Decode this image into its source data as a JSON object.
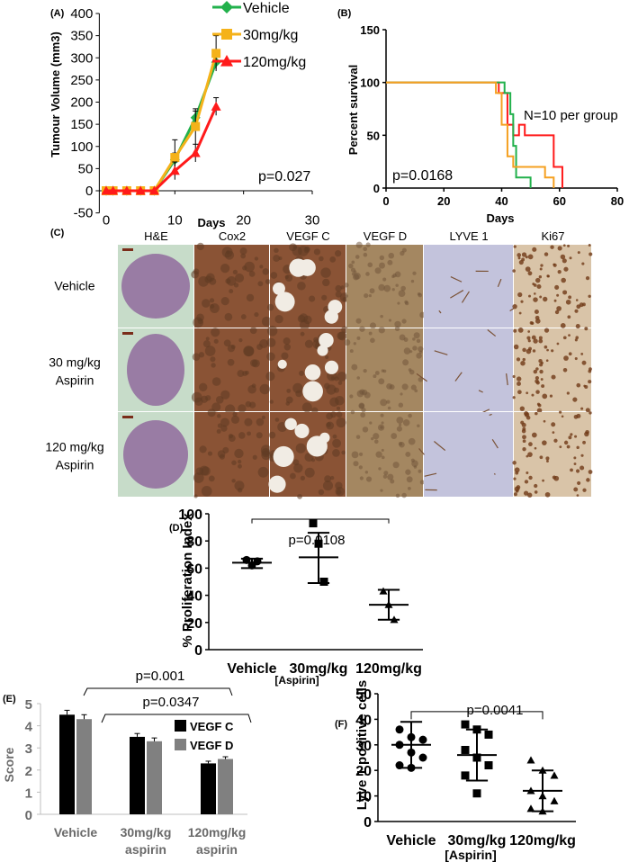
{
  "chart_data": [
    {
      "panel": "(A)",
      "type": "line",
      "xlabel": "Days",
      "ylabel": "Tumour Volume (mm3)",
      "xlim": [
        -1,
        30
      ],
      "ylim": [
        -50,
        400
      ],
      "xticks": [
        "0",
        "10",
        "20",
        "30"
      ],
      "yticks": [
        "-50",
        "0",
        "50",
        "100",
        "150",
        "200",
        "250",
        "300",
        "350",
        "400"
      ],
      "annotation": "p=0.027",
      "legend_position": "top-right",
      "series": [
        {
          "name": "Vehicle",
          "color": "#22b14c",
          "marker": "diamond",
          "x": [
            0,
            1,
            3,
            5,
            7,
            10,
            13,
            16
          ],
          "y": [
            0,
            0,
            0,
            0,
            0,
            70,
            165,
            290
          ]
        },
        {
          "name": "30mg/kg",
          "color": "#f5b21a",
          "marker": "square",
          "x": [
            0,
            1,
            3,
            5,
            7,
            10,
            13,
            16
          ],
          "y": [
            0,
            0,
            0,
            0,
            0,
            75,
            145,
            310
          ]
        },
        {
          "name": "120mg/kg",
          "color": "#ff1a1a",
          "marker": "triangle",
          "x": [
            0,
            1,
            3,
            5,
            7,
            10,
            13,
            16
          ],
          "y": [
            0,
            0,
            0,
            0,
            0,
            45,
            85,
            190
          ]
        }
      ]
    },
    {
      "panel": "(B)",
      "type": "line",
      "xlabel": "Days",
      "ylabel": "Percent survival",
      "xlim": [
        0,
        80
      ],
      "ylim": [
        0,
        150
      ],
      "xticks": [
        "0",
        "20",
        "40",
        "60",
        "80"
      ],
      "yticks": [
        "0",
        "50",
        "100",
        "150"
      ],
      "annotation_n": "N=10 per group",
      "annotation_p": "p=0.0168",
      "series": [
        {
          "color": "#ff1a1a",
          "x": [
            0,
            39,
            39,
            42,
            42,
            44,
            44,
            46,
            46,
            48,
            48,
            58,
            58,
            61,
            61
          ],
          "y": [
            100,
            100,
            90,
            90,
            60,
            60,
            50,
            50,
            60,
            60,
            50,
            50,
            20,
            20,
            0
          ]
        },
        {
          "color": "#22b14c",
          "x": [
            0,
            41,
            41,
            43,
            43,
            44,
            44,
            45,
            45,
            50,
            50
          ],
          "y": [
            100,
            100,
            90,
            90,
            70,
            70,
            40,
            40,
            10,
            10,
            0
          ]
        },
        {
          "color": "#f5a020",
          "x": [
            0,
            38,
            38,
            40,
            40,
            42,
            42,
            44,
            44,
            55,
            55,
            58,
            58
          ],
          "y": [
            100,
            100,
            90,
            90,
            60,
            60,
            30,
            30,
            20,
            20,
            10,
            10,
            0
          ]
        }
      ]
    },
    {
      "panel": "(D)",
      "type": "scatter",
      "categories": [
        "Vehicle",
        "30mg/kg",
        "120mg/kg"
      ],
      "xlabel": "[Aspirin]",
      "ylabel": "% Proliferation  Index",
      "ylim": [
        0,
        100
      ],
      "yticks": [
        "0",
        "20",
        "40",
        "60",
        "80",
        "100"
      ],
      "annotation": "p=0.0108",
      "points": [
        [
          66,
          62,
          65
        ],
        [
          93,
          78,
          50
        ],
        [
          43,
          33,
          22
        ]
      ],
      "means": [
        64,
        68,
        33
      ],
      "sd_upper": [
        67,
        86,
        44
      ],
      "sd_lower": [
        60,
        49,
        22
      ]
    },
    {
      "panel": "(E)",
      "type": "bar",
      "categories": [
        [
          "Vehicle"
        ],
        [
          "30mg/kg",
          "aspirin"
        ],
        [
          "120mg/kg",
          "aspirin"
        ]
      ],
      "ylabel": "Score",
      "ylim": [
        0,
        5
      ],
      "yticks": [
        "0",
        "1",
        "2",
        "3",
        "4",
        "5"
      ],
      "annotation_1": "p=0.001",
      "annotation_2": "p=0.0347",
      "series": [
        {
          "name": "VEGF C",
          "color": "#000000",
          "values": [
            4.5,
            3.5,
            2.3
          ],
          "errors": [
            0.2,
            0.15,
            0.1
          ]
        },
        {
          "name": "VEGF D",
          "color": "#808080",
          "values": [
            4.3,
            3.3,
            2.5
          ],
          "errors": [
            0.2,
            0.15,
            0.1
          ]
        }
      ]
    },
    {
      "panel": "(F)",
      "type": "scatter",
      "categories": [
        "Vehicle",
        "30mg/kg",
        "120mg/kg"
      ],
      "xlabel": "[Aspirin]",
      "ylabel": "Lyve 1 positive cells",
      "ylim": [
        0,
        50
      ],
      "yticks": [
        "0",
        "10",
        "20",
        "30",
        "40",
        "50"
      ],
      "annotation": "p=0.0041",
      "points": [
        [
          36,
          33,
          32,
          30,
          27,
          25,
          22,
          21
        ],
        [
          38,
          36,
          34,
          28,
          25,
          22,
          18,
          11
        ],
        [
          24,
          20,
          18,
          12,
          10,
          8,
          5,
          4
        ]
      ],
      "means": [
        30,
        26,
        12
      ],
      "sd_upper": [
        39,
        36,
        20
      ],
      "sd_lower": [
        21,
        16,
        4
      ]
    }
  ],
  "panel_c": {
    "label": "(C)",
    "columns": [
      "H&E",
      "Cox2",
      "VEGF C",
      "VEGF D",
      "LYVE 1",
      "Ki67"
    ],
    "rows": [
      {
        "line1": "Vehicle",
        "line2": ""
      },
      {
        "line1": "30 mg/kg",
        "line2": "Aspirin"
      },
      {
        "line1": "120 mg/kg",
        "line2": "Aspirin"
      }
    ],
    "tile_colors": {
      "he_bg": "#c7dcc9",
      "he_tissue": "#8a5c97",
      "brown": "#8a5335",
      "brown_dark": "#5e3a22",
      "vegfd": "#a48761",
      "lyve_bg": "#c3c3dc",
      "lyve_line": "#7a5236",
      "ki67_bg": "#d9c4a8",
      "ki67_dot": "#6f3a17"
    }
  }
}
